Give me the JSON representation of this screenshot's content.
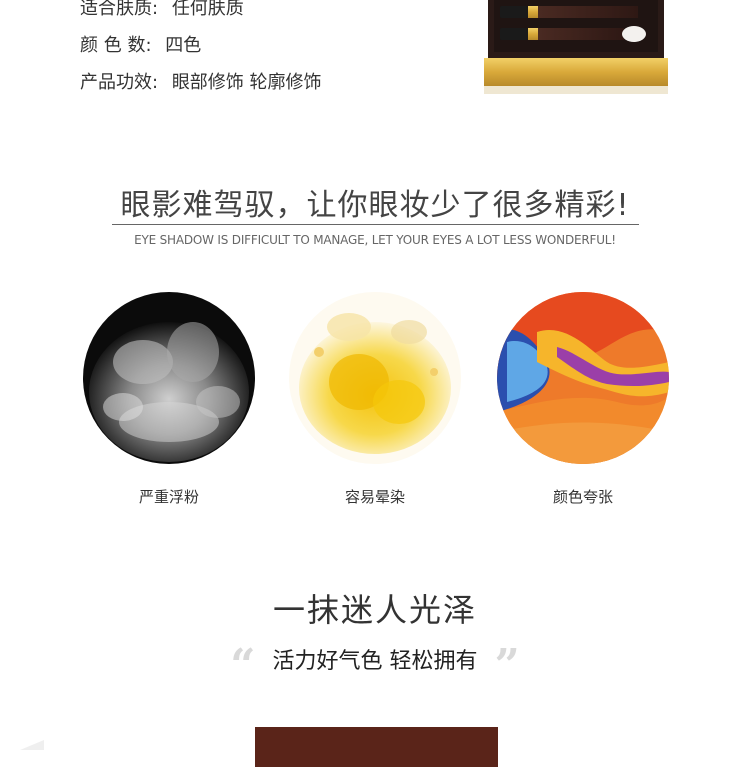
{
  "specs": [
    {
      "label": "适合肤质:",
      "value": "任何肤质"
    },
    {
      "label": "颜 色 数:",
      "value": "四色"
    },
    {
      "label": "产品功效:",
      "value": "眼部修饰 轮廓修饰"
    }
  ],
  "section": {
    "title": "眼影难驾驭，让你眼妆少了很多精彩!",
    "subtitle": "EYE SHADOW IS DIFFICULT TO MANAGE, LET YOUR EYES A LOT LESS WONDERFUL!"
  },
  "problems": [
    {
      "caption": "严重浮粉",
      "image": "gray-powder-explosion"
    },
    {
      "caption": "容易晕染",
      "image": "yellow-ink-splash"
    },
    {
      "caption": "颜色夸张",
      "image": "orange-paint-swirl"
    }
  ],
  "slogan": {
    "title": "一抹迷人光泽",
    "quote": "活力好气色 轻松拥有",
    "open_quote": "“",
    "close_quote": "”"
  },
  "colors": {
    "palette_gold": "#d9a93a",
    "palette_dark": "#3a1f1a",
    "box_brown": "#5a2419"
  }
}
